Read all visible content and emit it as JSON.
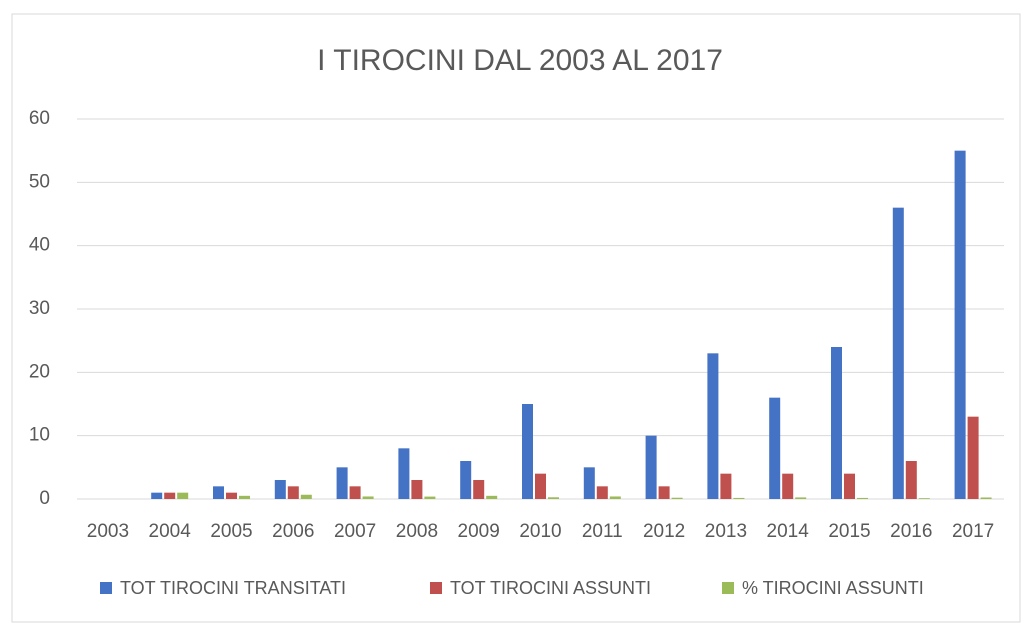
{
  "chart_data": {
    "type": "bar",
    "title": "I TIROCINI DAL 2003 AL 2017",
    "categories": [
      "2003",
      "2004",
      "2005",
      "2006",
      "2007",
      "2008",
      "2009",
      "2010",
      "2011",
      "2012",
      "2013",
      "2014",
      "2015",
      "2016",
      "2017"
    ],
    "series": [
      {
        "name": "TOT TIROCINI TRANSITATI",
        "color": "#4472c4",
        "values": [
          0,
          1,
          2,
          3,
          5,
          8,
          6,
          15,
          5,
          10,
          23,
          16,
          24,
          46,
          55
        ]
      },
      {
        "name": "TOT TIROCINI ASSUNTI",
        "color": "#c0504d",
        "values": [
          0,
          1,
          1,
          2,
          2,
          3,
          3,
          4,
          2,
          2,
          4,
          4,
          4,
          6,
          13
        ]
      },
      {
        "name": "% TIROCINI ASSUNTI",
        "color": "#9bbb59",
        "values": [
          0,
          1,
          0.5,
          0.67,
          0.4,
          0.38,
          0.5,
          0.27,
          0.4,
          0.2,
          0.17,
          0.25,
          0.17,
          0.13,
          0.24
        ]
      }
    ],
    "ylim": [
      0,
      60
    ],
    "yticks": [
      0,
      10,
      20,
      30,
      40,
      50,
      60
    ],
    "grid": true,
    "legend": "bottom"
  }
}
